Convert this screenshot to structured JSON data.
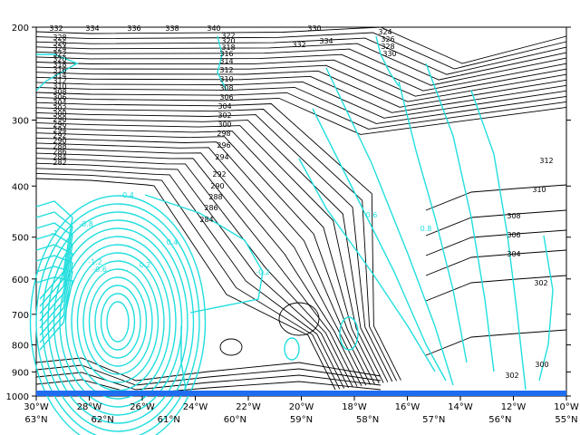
{
  "chart_data": {
    "type": "line",
    "title": "",
    "description_free": true,
    "y_axis": {
      "scale": "log-pressure",
      "ylim": [
        1000,
        200
      ],
      "ticks": [
        "200",
        "300",
        "400",
        "500",
        "600",
        "700",
        "800",
        "900",
        "1000"
      ]
    },
    "x_axis_lon": [
      "30°W",
      "28°W",
      "26°W",
      "24°W",
      "22°W",
      "20°W",
      "18°W",
      "16°W",
      "14°W",
      "12°W",
      "10°W"
    ],
    "x_axis_lat": [
      "63°N",
      "62°N",
      "61°N",
      "60°N",
      "59°N",
      "58°N",
      "57°N",
      "56°N",
      "55°N"
    ],
    "series": [
      {
        "field": "theta",
        "color": "#000000",
        "levels": [
          282,
          284,
          286,
          288,
          290,
          292,
          294,
          296,
          298,
          300,
          302,
          304,
          306,
          308,
          310,
          312,
          314,
          316,
          318,
          320,
          322,
          324,
          326,
          328,
          330,
          332,
          334,
          336,
          338,
          340
        ]
      },
      {
        "field": "pv",
        "color": "#22dede",
        "levels": [
          -0.2,
          -0.4,
          -0.6,
          -0.8,
          -1,
          -1.2,
          0.2,
          0.4,
          0.6,
          0.8
        ]
      }
    ],
    "upper_labels": [
      "332",
      "334",
      "336",
      "338",
      "340",
      "330",
      "328",
      "326",
      "324",
      "322",
      "320",
      "318",
      "316",
      "314",
      "312",
      "310",
      "308",
      "306",
      "304",
      "302",
      "300",
      "298",
      "296",
      "294",
      "292",
      "290",
      "288",
      "286",
      "284",
      "282"
    ],
    "isentrope_labels": [
      "292",
      "290",
      "288",
      "286",
      "284",
      "296",
      "294",
      "298",
      "300",
      "302",
      "304",
      "306",
      "308",
      "310",
      "312",
      "314",
      "316",
      "318",
      "320",
      "322",
      "324",
      "326",
      "328",
      "330",
      "332",
      "334"
    ],
    "right_labels": [
      "312",
      "310",
      "308",
      "306",
      "304",
      "302",
      "300",
      "302"
    ],
    "pv_labels": [
      "-0.2",
      "-0.4",
      "-0.6",
      "-0.8",
      "-1",
      "-1.2",
      "0.2",
      "0.4",
      "0.6",
      "0.8"
    ],
    "colors": {
      "theta": "#000000",
      "pv": "#22dede",
      "surface": "#1e6cf0"
    }
  }
}
